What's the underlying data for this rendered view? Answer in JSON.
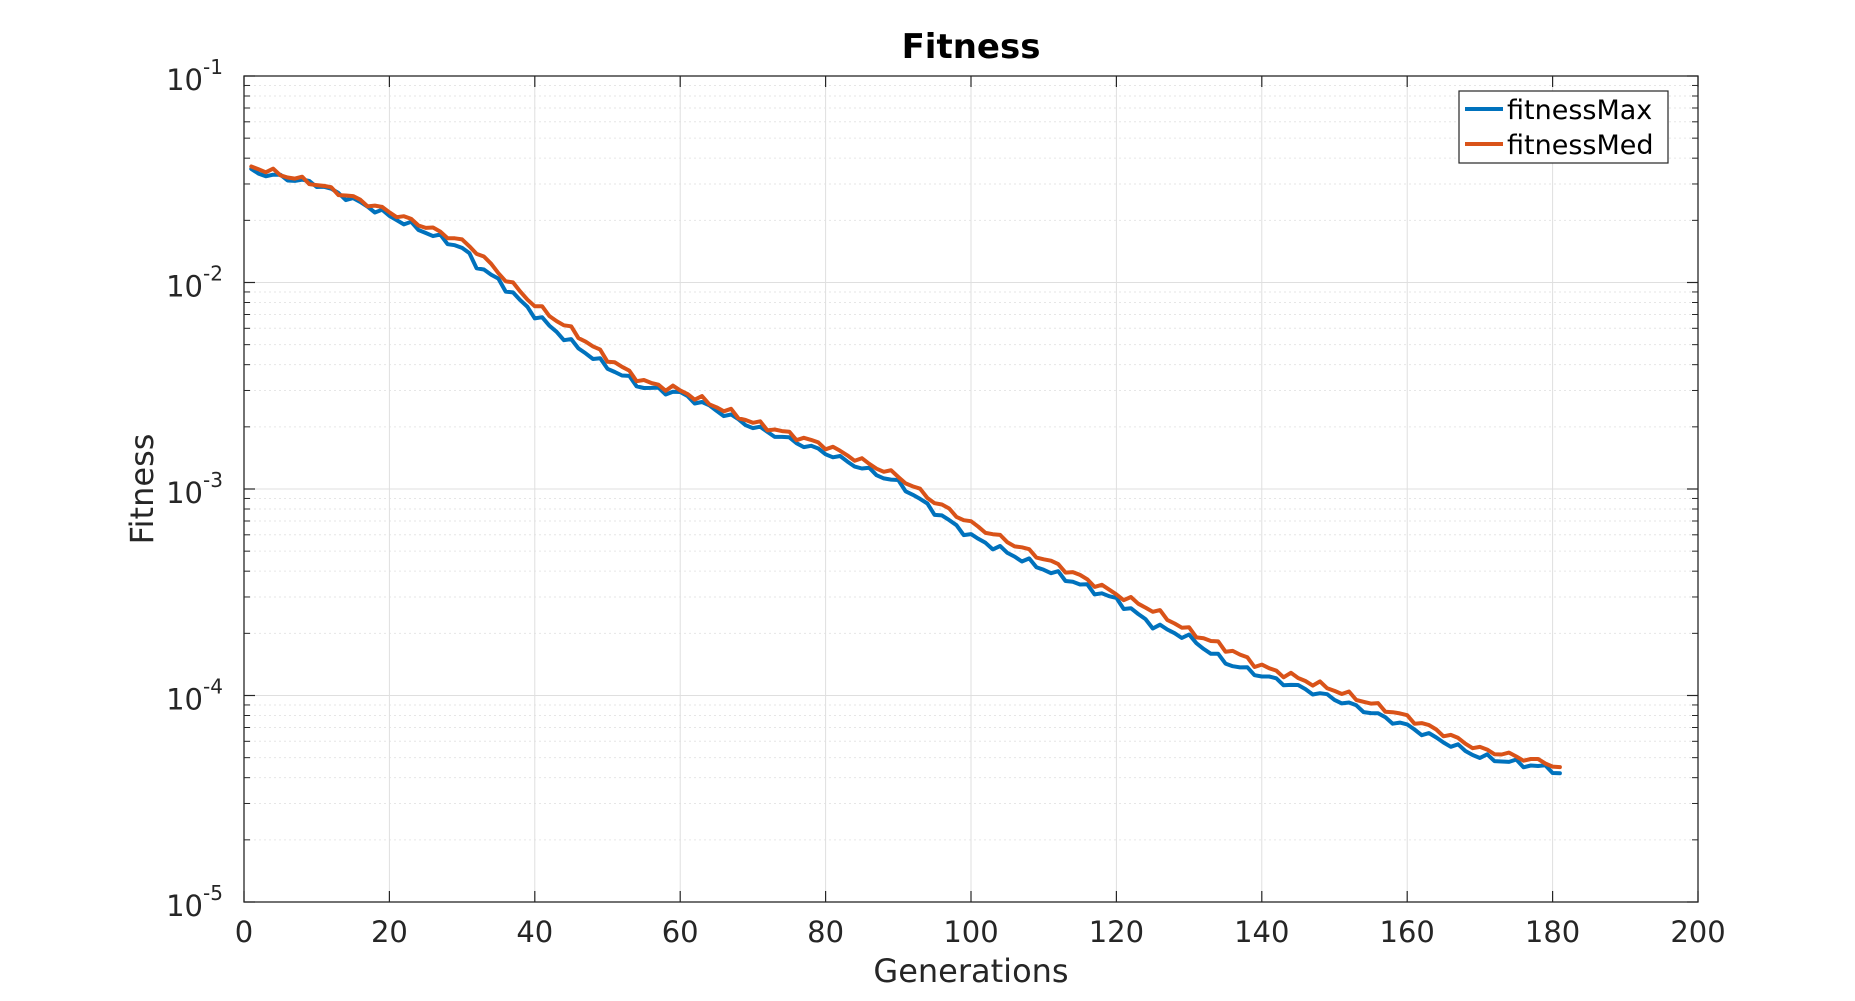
{
  "chart_data": {
    "type": "line",
    "title": "Fitness",
    "xlabel": "Generations",
    "ylabel": "Fitness",
    "xlim": [
      0,
      200
    ],
    "ylim": [
      1e-05,
      0.1
    ],
    "yscale": "log",
    "grid": true,
    "legend_position": "top-right",
    "x_ticks": [
      "0",
      "20",
      "40",
      "60",
      "80",
      "100",
      "120",
      "140",
      "160",
      "180",
      "200"
    ],
    "y_ticks": [
      {
        "base": "10",
        "exp": "-5",
        "value": 1e-05
      },
      {
        "base": "10",
        "exp": "-4",
        "value": 0.0001
      },
      {
        "base": "10",
        "exp": "-3",
        "value": 0.001
      },
      {
        "base": "10",
        "exp": "-2",
        "value": 0.01
      },
      {
        "base": "10",
        "exp": "-1",
        "value": 0.1
      }
    ],
    "series": [
      {
        "name": "fitnessMax",
        "color": "#0072BD",
        "x": [
          1,
          10,
          20,
          30,
          32,
          35,
          40,
          45,
          50,
          55,
          60,
          70,
          80,
          90,
          95,
          100,
          110,
          120,
          125,
          130,
          135,
          140,
          150,
          160,
          170,
          180,
          181
        ],
        "y": [
          0.0345,
          0.03,
          0.021,
          0.0147,
          0.0122,
          0.0102,
          0.007,
          0.0051,
          0.0039,
          0.0031,
          0.0029,
          0.002,
          0.0015,
          0.00107,
          0.00078,
          0.00059,
          0.00041,
          0.00029,
          0.00022,
          0.00019,
          0.000145,
          0.000125,
          9.65e-05,
          7.1e-05,
          5.05e-05,
          4.4e-05,
          4.15e-05
        ]
      },
      {
        "name": "fitnessMed",
        "color": "#D95319",
        "x": [
          1,
          10,
          20,
          30,
          32,
          35,
          40,
          45,
          50,
          55,
          60,
          70,
          80,
          90,
          95,
          100,
          110,
          120,
          125,
          130,
          135,
          140,
          150,
          160,
          170,
          180,
          181
        ],
        "y": [
          0.0365,
          0.03,
          0.022,
          0.0158,
          0.0142,
          0.0112,
          0.0078,
          0.0059,
          0.0043,
          0.0033,
          0.003,
          0.0021,
          0.00162,
          0.00115,
          0.00087,
          0.00068,
          0.00046,
          0.00031,
          0.00026,
          0.000205,
          0.00017,
          0.000138,
          0.0001065,
          7.85e-05,
          5.5e-05,
          4.65e-05,
          4.4e-05
        ]
      }
    ]
  }
}
